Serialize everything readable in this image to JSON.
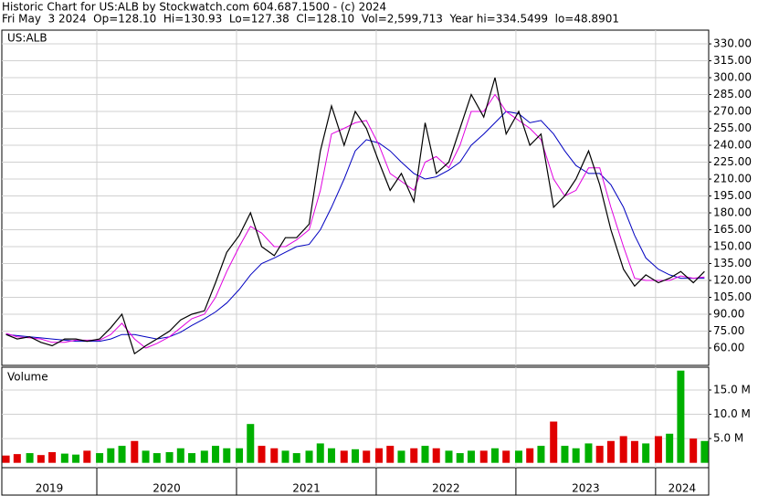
{
  "header": {
    "title": "Historic Chart for US:ALB by Stockwatch.com 604.687.1500 - (c) 2024",
    "quote": "Fri May  3 2024  Op=128.10  Hi=130.93  Lo=127.38  Cl=128.10  Vol=2,599,713  Year hi=334.5499  lo=48.8901"
  },
  "chart_data": [
    {
      "type": "line",
      "label": "US:ALB",
      "x": [
        2019.35,
        2019.43,
        2019.52,
        2019.6,
        2019.68,
        2019.77,
        2019.85,
        2019.93,
        2020.02,
        2020.1,
        2020.18,
        2020.27,
        2020.35,
        2020.43,
        2020.52,
        2020.6,
        2020.68,
        2020.77,
        2020.85,
        2020.93,
        2021.02,
        2021.1,
        2021.18,
        2021.27,
        2021.35,
        2021.43,
        2021.52,
        2021.6,
        2021.68,
        2021.77,
        2021.85,
        2021.93,
        2022.02,
        2022.1,
        2022.18,
        2022.27,
        2022.35,
        2022.43,
        2022.52,
        2022.6,
        2022.68,
        2022.77,
        2022.85,
        2022.93,
        2023.02,
        2023.1,
        2023.18,
        2023.27,
        2023.35,
        2023.43,
        2023.52,
        2023.6,
        2023.68,
        2023.77,
        2023.85,
        2023.93,
        2024.02,
        2024.1,
        2024.18,
        2024.27,
        2024.35
      ],
      "series": [
        {
          "color": "#000000",
          "values": [
            72,
            68,
            70,
            65,
            62,
            68,
            68,
            66,
            68,
            78,
            90,
            55,
            62,
            68,
            75,
            85,
            90,
            93,
            118,
            145,
            160,
            180,
            150,
            142,
            158,
            158,
            170,
            235,
            275,
            240,
            270,
            255,
            225,
            200,
            215,
            190,
            260,
            215,
            225,
            255,
            285,
            265,
            300,
            250,
            270,
            240,
            250,
            185,
            195,
            210,
            235,
            205,
            165,
            130,
            115,
            125,
            118,
            122,
            128,
            118,
            128
          ]
        },
        {
          "color": "#e000e0",
          "values": [
            73,
            70,
            69,
            68,
            65,
            65,
            67,
            67,
            67,
            72,
            82,
            68,
            60,
            64,
            70,
            78,
            86,
            90,
            105,
            128,
            150,
            168,
            162,
            150,
            150,
            156,
            165,
            200,
            250,
            255,
            260,
            262,
            240,
            215,
            208,
            200,
            225,
            230,
            220,
            240,
            270,
            270,
            285,
            270,
            262,
            255,
            245,
            210,
            195,
            200,
            220,
            220,
            185,
            150,
            122,
            120,
            120,
            120,
            124,
            122,
            123
          ]
        },
        {
          "color": "#0000c0",
          "values": [
            72,
            71,
            70,
            69,
            68,
            67,
            66,
            66,
            66,
            68,
            72,
            72,
            70,
            68,
            70,
            74,
            80,
            86,
            92,
            100,
            112,
            125,
            135,
            140,
            145,
            150,
            152,
            165,
            185,
            210,
            235,
            245,
            242,
            235,
            225,
            215,
            210,
            212,
            218,
            225,
            240,
            250,
            260,
            270,
            268,
            260,
            262,
            250,
            235,
            222,
            215,
            215,
            205,
            185,
            160,
            140,
            130,
            125,
            122,
            122,
            122
          ]
        }
      ],
      "xlim": [
        2019.32,
        2024.38
      ],
      "ylim": [
        44.6,
        342.2
      ],
      "yticks": [
        {
          "value": 60,
          "label": "60.00"
        },
        {
          "value": 75,
          "label": "75.00"
        },
        {
          "value": 90,
          "label": "90.00"
        },
        {
          "value": 105,
          "label": "105.00"
        },
        {
          "value": 120,
          "label": "120.00"
        },
        {
          "value": 135,
          "label": "135.00"
        },
        {
          "value": 150,
          "label": "150.00"
        },
        {
          "value": 165,
          "label": "165.00"
        },
        {
          "value": 180,
          "label": "180.00"
        },
        {
          "value": 195,
          "label": "195.00"
        },
        {
          "value": 210,
          "label": "210.00"
        },
        {
          "value": 225,
          "label": "225.00"
        },
        {
          "value": 240,
          "label": "240.00"
        },
        {
          "value": 255,
          "label": "255.00"
        },
        {
          "value": 270,
          "label": "270.00"
        },
        {
          "value": 285,
          "label": "285.00"
        },
        {
          "value": 300,
          "label": "300.00"
        },
        {
          "value": 315,
          "label": "315.00"
        },
        {
          "value": 330,
          "label": "330.00"
        }
      ],
      "grid": true
    },
    {
      "type": "bar",
      "label": "Volume",
      "x": [
        2019.35,
        2019.43,
        2019.52,
        2019.6,
        2019.68,
        2019.77,
        2019.85,
        2019.93,
        2020.02,
        2020.1,
        2020.18,
        2020.27,
        2020.35,
        2020.43,
        2020.52,
        2020.6,
        2020.68,
        2020.77,
        2020.85,
        2020.93,
        2021.02,
        2021.1,
        2021.18,
        2021.27,
        2021.35,
        2021.43,
        2021.52,
        2021.6,
        2021.68,
        2021.77,
        2021.85,
        2021.93,
        2022.02,
        2022.1,
        2022.18,
        2022.27,
        2022.35,
        2022.43,
        2022.52,
        2022.6,
        2022.68,
        2022.77,
        2022.85,
        2022.93,
        2023.02,
        2023.1,
        2023.18,
        2023.27,
        2023.35,
        2023.43,
        2023.52,
        2023.6,
        2023.68,
        2023.77,
        2023.85,
        2023.93,
        2024.02,
        2024.1,
        2024.18,
        2024.27,
        2024.35
      ],
      "values": [
        1.5,
        1.8,
        2.0,
        1.6,
        2.2,
        1.9,
        1.7,
        2.5,
        2.0,
        3.0,
        3.5,
        4.5,
        2.5,
        2.0,
        2.2,
        3.0,
        2.0,
        2.5,
        3.5,
        3.0,
        3.0,
        8.0,
        3.5,
        3.0,
        2.5,
        2.0,
        2.5,
        4.0,
        3.0,
        2.5,
        2.8,
        2.5,
        3.0,
        3.5,
        2.5,
        3.0,
        3.5,
        3.0,
        2.5,
        2.0,
        2.5,
        2.5,
        3.0,
        2.5,
        2.5,
        3.0,
        3.5,
        8.5,
        3.5,
        3.0,
        4.0,
        3.5,
        4.5,
        5.5,
        4.5,
        4.0,
        5.5,
        6.0,
        19.0,
        5.0,
        4.5
      ],
      "up_color": "#00b000",
      "down_color": "#e00000",
      "xlim": [
        2019.32,
        2024.38
      ],
      "ylim": [
        -1.0,
        19.7
      ],
      "yticks": [
        {
          "value": 5,
          "label": "5.0 M"
        },
        {
          "value": 10,
          "label": "10.0 M"
        },
        {
          "value": 15,
          "label": "15.0 M"
        }
      ],
      "xticks": [
        2019,
        2020,
        2021,
        2022,
        2023,
        2024
      ],
      "grid": true
    }
  ]
}
